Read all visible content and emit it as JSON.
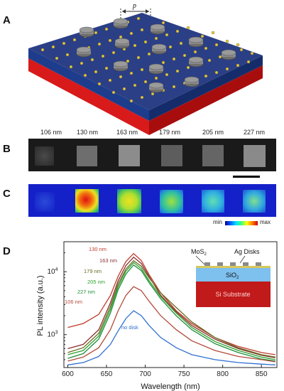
{
  "panels": {
    "a": {
      "letter": "A",
      "period_label": "p"
    },
    "b": {
      "letter": "B",
      "sizes": [
        "106 nm",
        "130 nm",
        "163 nm",
        "179 nm",
        "205 nm",
        "227 nm"
      ]
    },
    "c": {
      "letter": "C",
      "colorbar_min": "min",
      "colorbar_max": "max"
    },
    "d": {
      "letter": "D"
    }
  },
  "inset": {
    "mos2_label": "MoS",
    "mos2_sub": "2",
    "ag_label": "Ag Disks",
    "sio2_label": "SiO",
    "sio2_sub": "2",
    "si_label": "Si Substrate"
  },
  "colors": {
    "red_dark": "#b22222",
    "green": "#2ca02c",
    "blue": "#2f6fd0",
    "olive": "#7a6a2a",
    "brown": "#8b3a3a"
  },
  "chart_data": {
    "type": "line",
    "xlabel": "Wavelength (nm)",
    "ylabel": "PL intensity (a.u.)",
    "xlim": [
      595,
      870
    ],
    "ylim_log": [
      300,
      30000
    ],
    "y_scale": "log",
    "x_ticks": [
      "600",
      "650",
      "700",
      "750",
      "800",
      "850"
    ],
    "y_ticks": [
      {
        "label": "10",
        "exp": "3"
      },
      {
        "label": "10",
        "exp": "4"
      }
    ],
    "grid": false,
    "series": [
      {
        "name": "130 nm",
        "color": "#c0392b",
        "x": [
          600,
          620,
          640,
          655,
          665,
          675,
          685,
          695,
          705,
          720,
          740,
          760,
          790,
          820,
          850,
          868
        ],
        "y": [
          1300,
          1500,
          2100,
          4200,
          8500,
          14500,
          19500,
          15000,
          9000,
          4600,
          2400,
          1500,
          900,
          650,
          520,
          480
        ]
      },
      {
        "name": "163 nm",
        "color": "#8b2f2f",
        "x": [
          600,
          620,
          640,
          655,
          665,
          675,
          685,
          695,
          705,
          720,
          740,
          760,
          790,
          820,
          850,
          868
        ],
        "y": [
          600,
          700,
          1200,
          3200,
          7200,
          12500,
          17000,
          13500,
          8400,
          4200,
          2300,
          1400,
          850,
          600,
          470,
          430
        ]
      },
      {
        "name": "179 nm",
        "color": "#6a6a20",
        "x": [
          600,
          620,
          640,
          655,
          665,
          675,
          685,
          695,
          705,
          720,
          740,
          760,
          790,
          820,
          850,
          868
        ],
        "y": [
          520,
          620,
          1050,
          2800,
          6400,
          11000,
          15000,
          12200,
          8000,
          4600,
          2700,
          1600,
          900,
          620,
          480,
          440
        ]
      },
      {
        "name": "205 nm",
        "color": "#2ca02c",
        "x": [
          600,
          620,
          640,
          655,
          665,
          675,
          685,
          695,
          705,
          720,
          740,
          760,
          790,
          820,
          850,
          868
        ],
        "y": [
          480,
          560,
          950,
          2500,
          5800,
          10200,
          14000,
          11200,
          7200,
          4000,
          2200,
          1300,
          780,
          560,
          440,
          400
        ]
      },
      {
        "name": "227 nm",
        "color": "#1f8f3a",
        "x": [
          600,
          620,
          640,
          655,
          665,
          675,
          685,
          695,
          705,
          720,
          740,
          760,
          790,
          820,
          850,
          868
        ],
        "y": [
          420,
          500,
          850,
          2200,
          5200,
          9200,
          12800,
          10400,
          6700,
          3700,
          2000,
          1200,
          720,
          520,
          410,
          380
        ]
      },
      {
        "name": "106 nm",
        "color": "#b24a3a",
        "x": [
          600,
          620,
          640,
          655,
          665,
          675,
          685,
          695,
          705,
          720,
          740,
          760,
          790,
          820,
          850,
          868
        ],
        "y": [
          380,
          440,
          620,
          1200,
          2400,
          4200,
          5800,
          5000,
          3400,
          2000,
          1200,
          800,
          560,
          450,
          400,
          370
        ]
      },
      {
        "name": "no disk",
        "color": "#2f6fd0",
        "x": [
          600,
          620,
          640,
          655,
          665,
          675,
          685,
          695,
          705,
          720,
          740,
          760,
          790,
          820,
          850,
          868
        ],
        "y": [
          330,
          360,
          450,
          700,
          1150,
          1800,
          2400,
          2000,
          1400,
          900,
          620,
          480,
          400,
          360,
          340,
          330
        ]
      }
    ]
  }
}
